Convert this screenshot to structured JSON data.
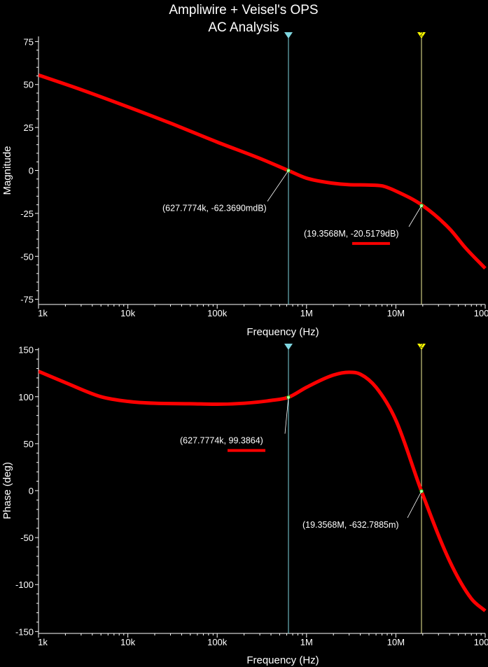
{
  "title": "Ampliwire + Veisel's OPS",
  "subtitle": "AC Analysis",
  "colors": {
    "background": "#000000",
    "axis": "#ffffff",
    "trace": "#ff0000",
    "cursor_a": "#7fd6e0",
    "cursor_b": "#f4f29a",
    "cursor_b_marker": "#ffff00"
  },
  "cursors": [
    {
      "id": "a",
      "freq": 627777.4,
      "marker_label": ""
    },
    {
      "id": "b",
      "freq": 19356800,
      "marker_label": "2"
    }
  ],
  "chart_data": [
    {
      "type": "line",
      "xlabel": "Frequency (Hz)",
      "ylabel": "Magnitude",
      "xscale": "log",
      "xlim": [
        1000,
        100000000
      ],
      "ylim": [
        -78,
        78
      ],
      "xticks": [
        {
          "v": 1000,
          "label": "1k"
        },
        {
          "v": 10000,
          "label": "10k"
        },
        {
          "v": 100000,
          "label": "100k"
        },
        {
          "v": 1000000,
          "label": "1M"
        },
        {
          "v": 10000000,
          "label": "10M"
        },
        {
          "v": 100000000,
          "label": "100M"
        }
      ],
      "yticks": [
        {
          "v": 75,
          "label": "75"
        },
        {
          "v": 50,
          "label": "50"
        },
        {
          "v": 25,
          "label": "25"
        },
        {
          "v": 0,
          "label": "0"
        },
        {
          "v": -25,
          "label": "-25"
        },
        {
          "v": -50,
          "label": "-50"
        },
        {
          "v": -75,
          "label": "-75"
        }
      ],
      "x": [
        1000,
        3000,
        10000,
        30000,
        100000,
        300000,
        627777,
        1000000,
        2000000,
        3000000,
        5000000,
        7000000,
        10000000,
        20000000,
        40000000,
        60000000,
        100000000
      ],
      "y": [
        55.5,
        47.0,
        37.0,
        27.5,
        16.5,
        7.0,
        -0.06,
        -4.5,
        -7.5,
        -8.3,
        -8.5,
        -9.0,
        -12.0,
        -20.5,
        -34.0,
        -45.0,
        -57.0
      ],
      "annotations": [
        {
          "text": "(627.7774k, -62.3690mdB)",
          "x": 627777.4,
          "y": -0.062369,
          "side": "left",
          "underline": false
        },
        {
          "text": "(19.3568M, -20.5179dB)",
          "x": 19356800,
          "y": -20.5179,
          "side": "left",
          "underline": true
        }
      ]
    },
    {
      "type": "line",
      "xlabel": "Frequency (Hz)",
      "ylabel": "Phase (deg)",
      "xscale": "log",
      "xlim": [
        1000,
        100000000
      ],
      "ylim": [
        -152,
        152
      ],
      "xticks": [
        {
          "v": 1000,
          "label": "1k"
        },
        {
          "v": 10000,
          "label": "10k"
        },
        {
          "v": 100000,
          "label": "100k"
        },
        {
          "v": 1000000,
          "label": "1M"
        },
        {
          "v": 10000000,
          "label": "10M"
        },
        {
          "v": 100000000,
          "label": "100M"
        }
      ],
      "yticks": [
        {
          "v": 150,
          "label": "150"
        },
        {
          "v": 100,
          "label": "100"
        },
        {
          "v": 50,
          "label": "50"
        },
        {
          "v": 0,
          "label": "0"
        },
        {
          "v": -50,
          "label": "-50"
        },
        {
          "v": -100,
          "label": "-100"
        },
        {
          "v": -150,
          "label": "-150"
        }
      ],
      "x": [
        1000,
        2000,
        5000,
        10000,
        20000,
        50000,
        100000,
        200000,
        400000,
        627777,
        1000000,
        2000000,
        3000000,
        4000000,
        6000000,
        10000000,
        19356800,
        40000000,
        70000000,
        100000000
      ],
      "y": [
        127,
        115,
        100,
        95,
        93,
        92.5,
        92,
        93,
        96,
        99.39,
        110,
        123,
        126,
        124,
        110,
        75,
        -0.63,
        -75,
        -115,
        -128
      ],
      "annotations": [
        {
          "text": "(627.7774k, 99.3864)",
          "x": 627777.4,
          "y": 99.3864,
          "side": "left",
          "underline": true
        },
        {
          "text": "(19.3568M, -632.7885m)",
          "x": 19356800,
          "y": -0.6327885,
          "side": "left",
          "underline": false
        }
      ]
    }
  ]
}
